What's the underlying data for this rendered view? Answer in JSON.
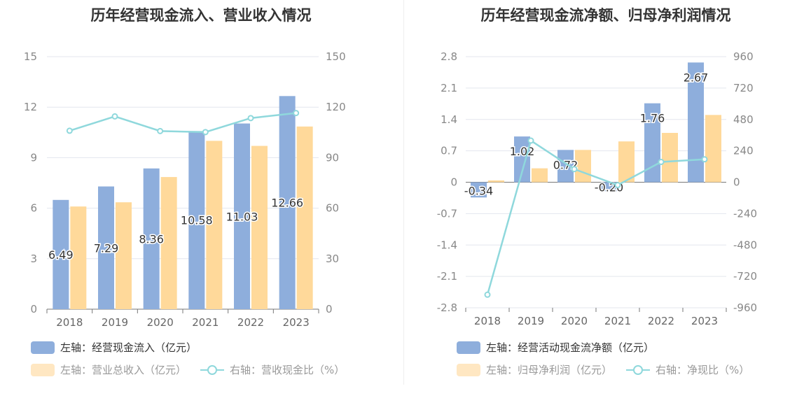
{
  "chart_data": [
    {
      "type": "bar",
      "title": "历年经营现金流入、营业收入情况",
      "categories": [
        "2018",
        "2019",
        "2020",
        "2021",
        "2022",
        "2023"
      ],
      "y_left": {
        "range": [
          0,
          15
        ],
        "ticks": [
          "0",
          "3",
          "6",
          "9",
          "12",
          "15"
        ]
      },
      "y_right": {
        "range": [
          0,
          150
        ],
        "ticks": [
          "0",
          "30",
          "60",
          "90",
          "120",
          "150"
        ]
      },
      "series": [
        {
          "name": "左轴：经营现金流入（亿元）",
          "kind": "bar",
          "axis": "left",
          "color": "#8eaedc",
          "values": [
            6.49,
            7.29,
            8.36,
            10.58,
            11.03,
            12.66
          ],
          "labels": [
            "6.49",
            "7.29",
            "8.36",
            "10.58",
            "11.03",
            "12.66"
          ]
        },
        {
          "name": "左轴：营业总收入（亿元）",
          "kind": "bar",
          "axis": "left",
          "color": "#ffd99a",
          "values": [
            6.1,
            6.35,
            7.85,
            10.0,
            9.7,
            10.85
          ]
        },
        {
          "name": "右轴：营收现金比（%）",
          "kind": "line",
          "axis": "right",
          "color": "#8fd8dc",
          "values": [
            106,
            114.5,
            105.8,
            105.2,
            113.5,
            116.5
          ]
        }
      ],
      "grid": true,
      "legend_position": "bottom-left"
    },
    {
      "type": "bar",
      "title": "历年经营现金流净额、归母净利润情况",
      "categories": [
        "2018",
        "2019",
        "2020",
        "2021",
        "2022",
        "2023"
      ],
      "y_left": {
        "range": [
          -2.8,
          2.8
        ],
        "ticks": [
          "2.8",
          "2.1",
          "1.4",
          "0.7",
          "0",
          "-0.7",
          "-1.4",
          "-2.1",
          "-2.8"
        ]
      },
      "y_right": {
        "range": [
          -960,
          960
        ],
        "ticks": [
          "960",
          "720",
          "480",
          "240",
          "0",
          "-240",
          "-480",
          "-720",
          "-960"
        ]
      },
      "series": [
        {
          "name": "左轴：经营活动现金流净额（亿元）",
          "kind": "bar",
          "axis": "left",
          "color": "#8eaedc",
          "values": [
            -0.34,
            1.02,
            0.72,
            -0.2,
            1.76,
            2.67
          ],
          "labels": [
            "-0.34",
            "1.02",
            "0.72",
            "-0.20",
            "1.76",
            "2.67"
          ]
        },
        {
          "name": "左轴：归母净利润（亿元）",
          "kind": "bar",
          "axis": "left",
          "color": "#ffd99a",
          "values": [
            0.04,
            0.31,
            0.72,
            0.91,
            1.1,
            1.5
          ]
        },
        {
          "name": "右轴：净现比（%）",
          "kind": "line",
          "axis": "right",
          "color": "#8fd8dc",
          "values": [
            -860,
            318,
            100,
            -22,
            155,
            175
          ]
        }
      ],
      "grid": true,
      "legend_position": "bottom-left"
    }
  ]
}
